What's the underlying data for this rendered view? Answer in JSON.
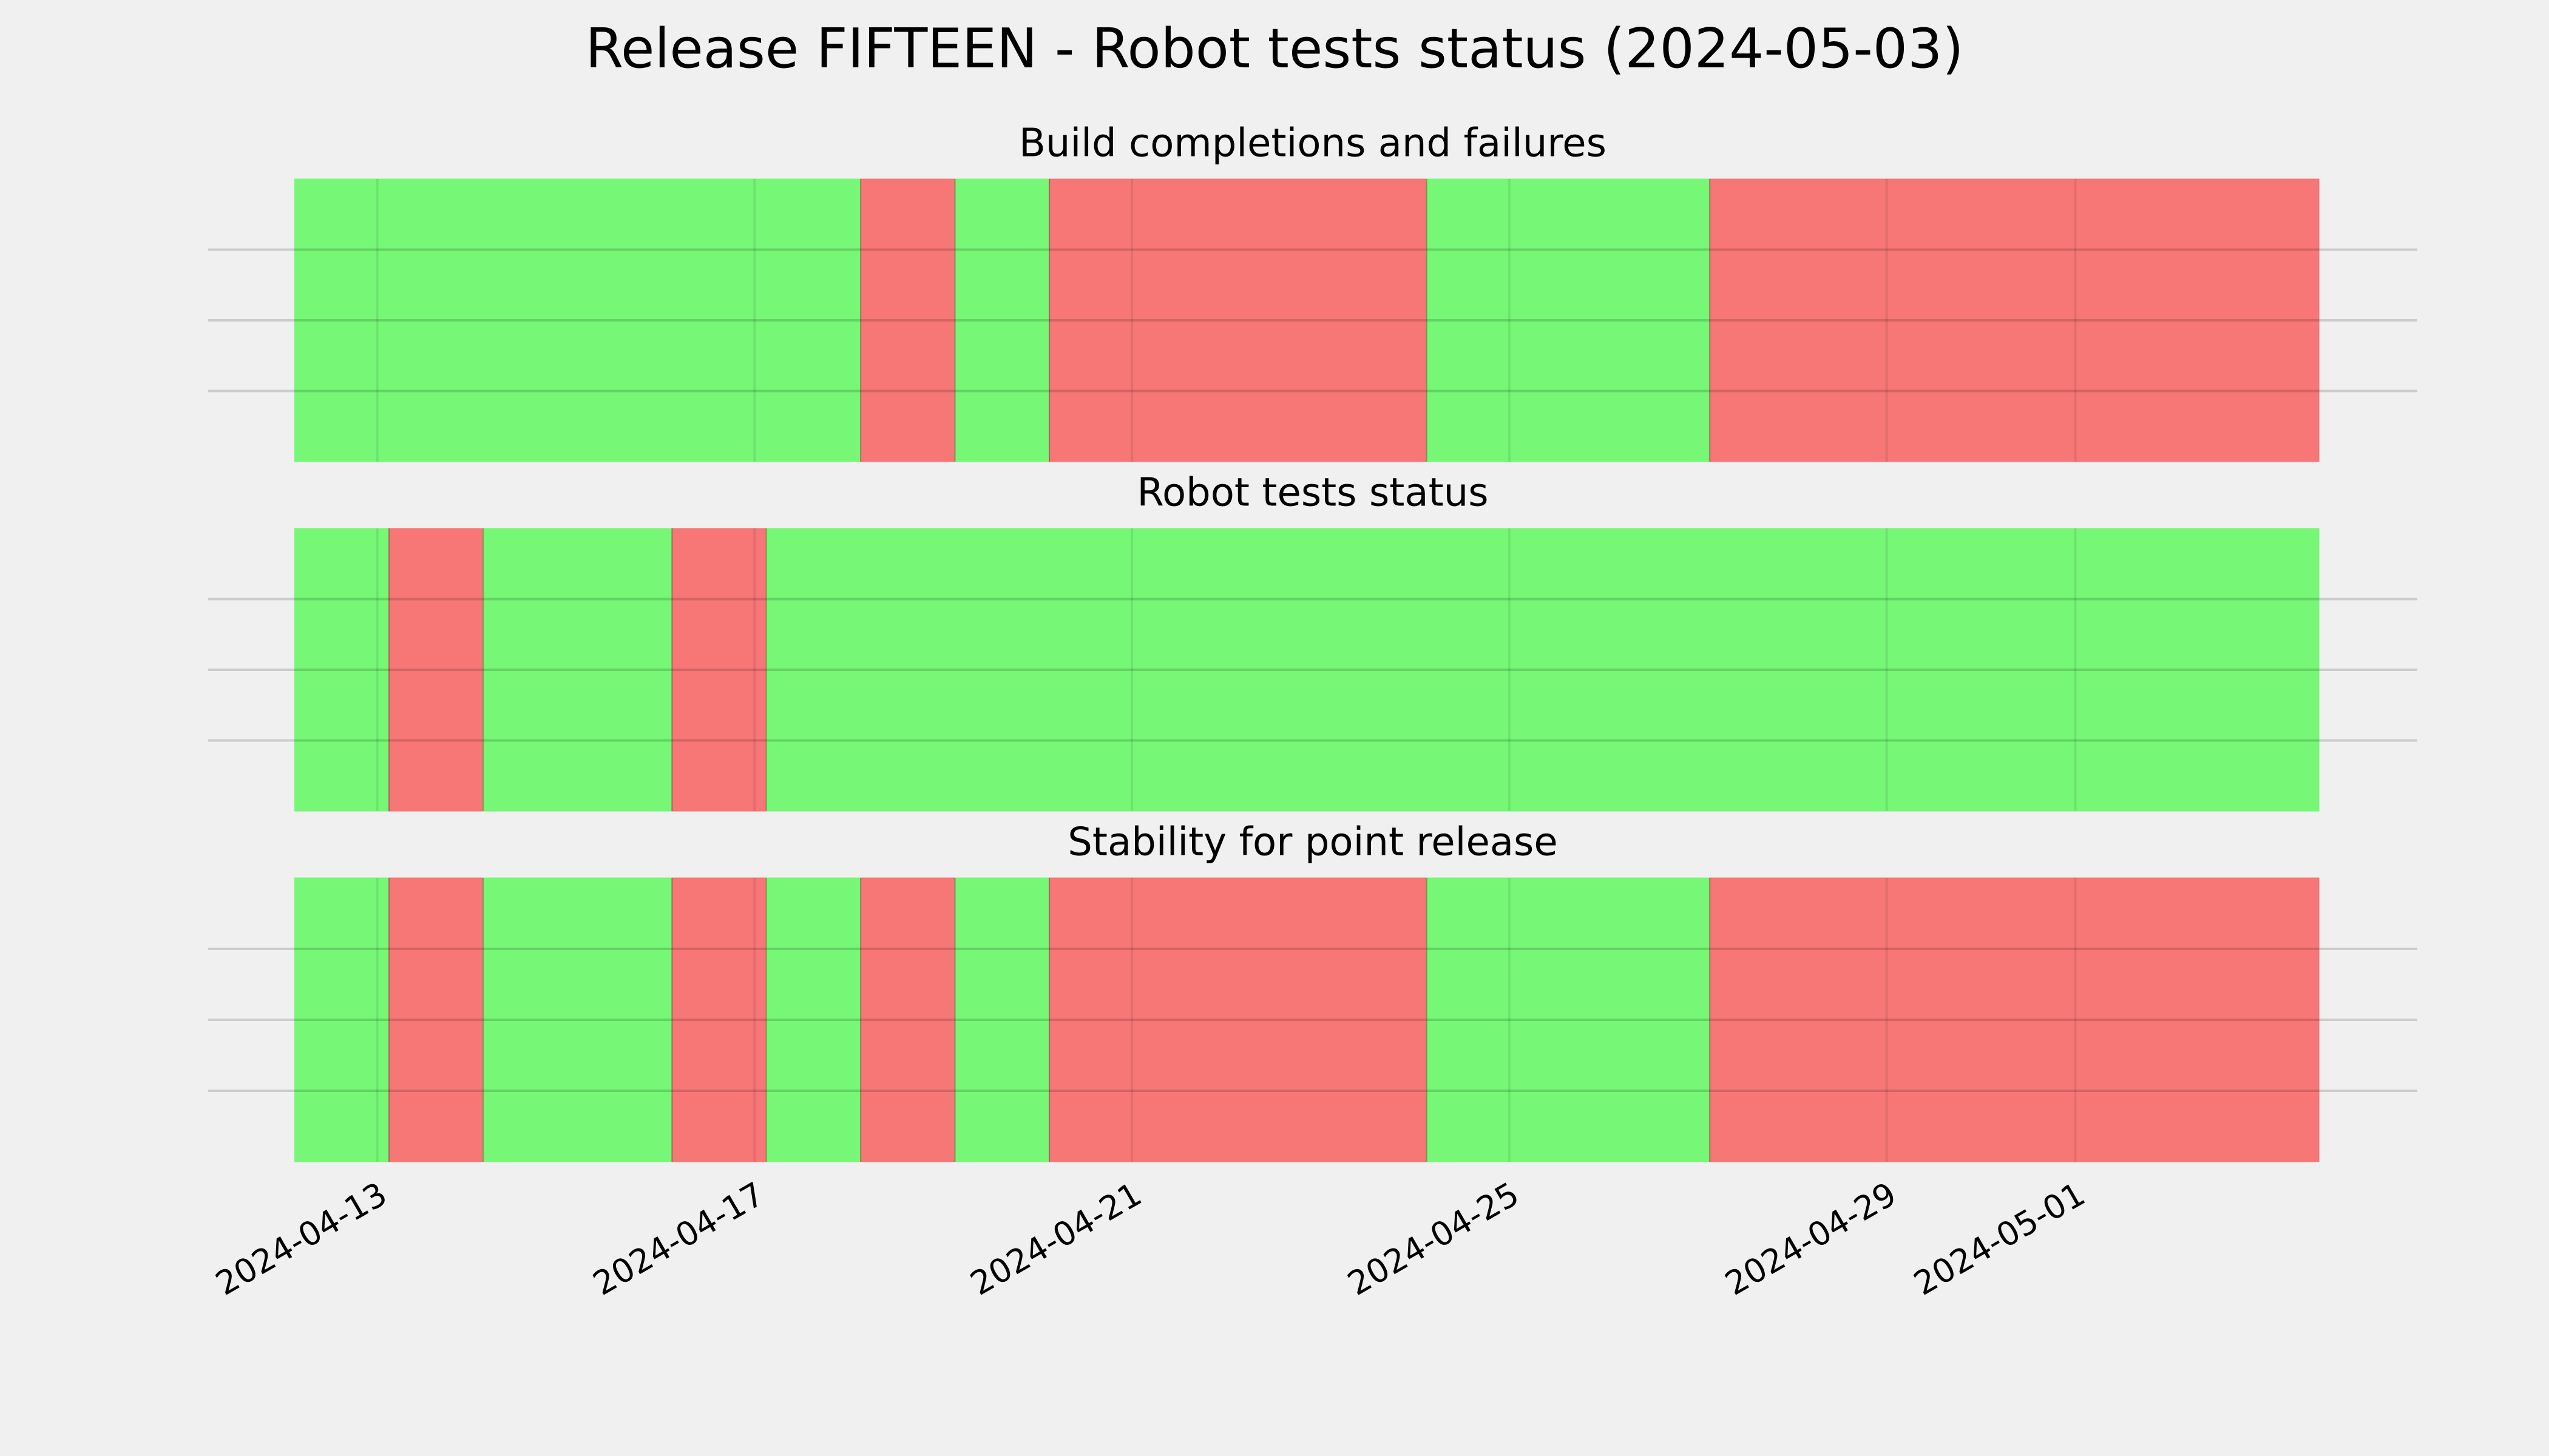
{
  "title": "Release FIFTEEN - Robot tests status (2024-05-03)",
  "chart_data": [
    {
      "type": "span",
      "title": "Build completions and failures",
      "x": [
        "2024-04-12T03:00",
        "2024-04-18T03:00",
        "2024-04-19T03:00",
        "2024-04-20T03:00",
        "2024-04-24T03:00",
        "2024-04-27T03:00",
        "2024-05-03T14:00"
      ],
      "colors": [
        "#76f776",
        "#f77676",
        "#76f776",
        "#f77676",
        "#76f776",
        "#f77676"
      ],
      "xlim": [
        "2024-04-11T05:00",
        "2024-05-04T15:00"
      ],
      "xticks": [
        "2024-04-13",
        "2024-04-17",
        "2024-04-21",
        "2024-04-25",
        "2024-04-29",
        "2024-05-01"
      ],
      "ylim": [
        0,
        1
      ],
      "yticks": [
        0.25,
        0.5,
        0.75
      ],
      "grid": true
    },
    {
      "type": "span",
      "title": "Robot tests status",
      "x": [
        "2024-04-12T03:00",
        "2024-04-13T03:00",
        "2024-04-14T03:00",
        "2024-04-16T03:00",
        "2024-04-17T03:00",
        "2024-05-03T14:00"
      ],
      "colors": [
        "#76f776",
        "#f77676",
        "#76f776",
        "#f77676",
        "#76f776"
      ],
      "xlim": [
        "2024-04-11T05:00",
        "2024-05-04T15:00"
      ],
      "xticks": [
        "2024-04-13",
        "2024-04-17",
        "2024-04-21",
        "2024-04-25",
        "2024-04-29",
        "2024-05-01"
      ],
      "ylim": [
        0,
        1
      ],
      "yticks": [
        0.25,
        0.5,
        0.75
      ],
      "grid": true
    },
    {
      "type": "span",
      "title": "Stability for point release",
      "x": [
        "2024-04-12T03:00",
        "2024-04-13T03:00",
        "2024-04-14T03:00",
        "2024-04-16T03:00",
        "2024-04-17T03:00",
        "2024-04-18T03:00",
        "2024-04-19T03:00",
        "2024-04-20T03:00",
        "2024-04-24T03:00",
        "2024-04-27T03:00",
        "2024-05-03T14:00"
      ],
      "colors": [
        "#76f776",
        "#f77676",
        "#76f776",
        "#f77676",
        "#76f776",
        "#f77676",
        "#76f776",
        "#f77676",
        "#76f776",
        "#f77676"
      ],
      "xlim": [
        "2024-04-11T05:00",
        "2024-05-04T15:00"
      ],
      "xticks": [
        "2024-04-13",
        "2024-04-17",
        "2024-04-21",
        "2024-04-25",
        "2024-04-29",
        "2024-05-01"
      ],
      "ylim": [
        0,
        1
      ],
      "yticks": [
        0.25,
        0.5,
        0.75
      ],
      "grid": true
    }
  ]
}
